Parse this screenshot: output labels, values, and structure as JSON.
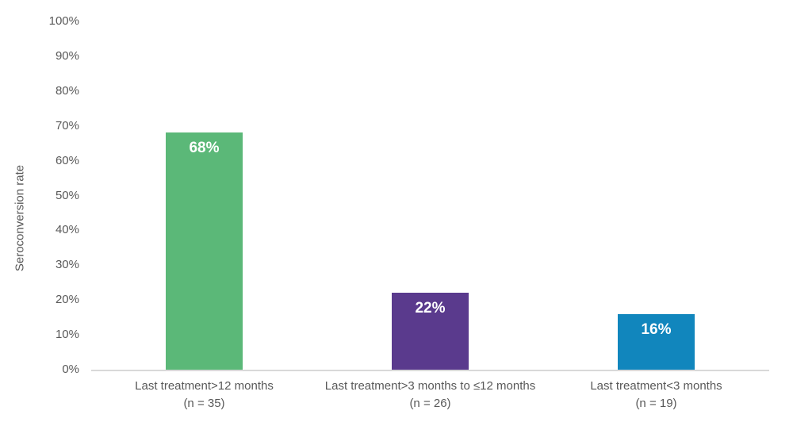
{
  "chart_data": {
    "type": "bar",
    "title": "",
    "xlabel": "",
    "ylabel": "Seroconversion rate",
    "categories": [
      "Last treatment>12 months",
      "Last treatment>3 months to ≤12 months",
      "Last treatment<3 months"
    ],
    "category_sublabels": [
      "(n = 35)",
      "(n = 26)",
      "(n = 19)"
    ],
    "values": [
      68,
      22,
      16
    ],
    "value_labels": [
      "68%",
      "22%",
      "16%"
    ],
    "bar_colors": [
      "#5bb878",
      "#5a3a8d",
      "#1186bd"
    ],
    "y_ticks": [
      "0%",
      "10%",
      "20%",
      "30%",
      "40%",
      "50%",
      "60%",
      "70%",
      "80%",
      "90%",
      "100%"
    ],
    "ylim": [
      0,
      100
    ],
    "grid": false,
    "legend": false,
    "colors": {
      "axis_line": "#d9d9d9",
      "axis_text": "#595959",
      "value_label_text": "#ffffff",
      "background": "#ffffff"
    }
  }
}
